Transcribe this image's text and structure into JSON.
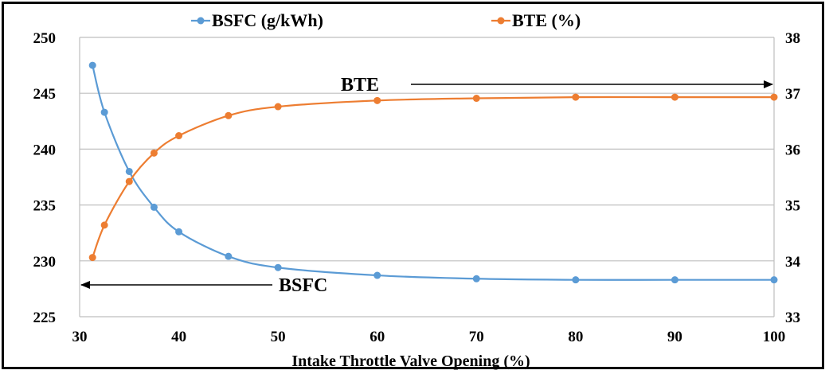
{
  "chart_data": {
    "type": "line",
    "xlabel": "Intake Throttle Valve Opening (%)",
    "xlim": [
      30,
      100
    ],
    "xticks": [
      30,
      40,
      50,
      60,
      70,
      80,
      90,
      100
    ],
    "y_left": {
      "lim": [
        225,
        250
      ],
      "ticks": [
        225,
        230,
        235,
        240,
        245,
        250
      ]
    },
    "y_right": {
      "lim": [
        33,
        38
      ],
      "ticks": [
        33,
        34,
        35,
        36,
        37,
        38
      ]
    },
    "grid": "horizontal",
    "legend_position": "top",
    "series": [
      {
        "name": "BSFC (g/kWh)",
        "axis": "left",
        "color": "#5b9bd5",
        "x": [
          31.3,
          32.5,
          35,
          37.5,
          40,
          45,
          50,
          60,
          70,
          80,
          90,
          100
        ],
        "y": [
          247.5,
          243.3,
          238.0,
          234.8,
          232.6,
          230.4,
          229.4,
          228.7,
          228.4,
          228.3,
          228.3,
          228.3
        ]
      },
      {
        "name": "BTE (%)",
        "axis": "right",
        "color": "#ed7d31",
        "x": [
          31.3,
          32.5,
          35,
          37.5,
          40,
          45,
          50,
          60,
          70,
          80,
          90,
          100
        ],
        "y": [
          34.06,
          34.64,
          35.42,
          35.93,
          36.24,
          36.6,
          36.76,
          36.87,
          36.91,
          36.93,
          36.93,
          36.93
        ]
      }
    ],
    "annotations": [
      {
        "text": "BTE",
        "direction": "right",
        "series": "BTE (%)"
      },
      {
        "text": "BSFC",
        "direction": "left",
        "series": "BSFC (g/kWh)"
      }
    ]
  }
}
